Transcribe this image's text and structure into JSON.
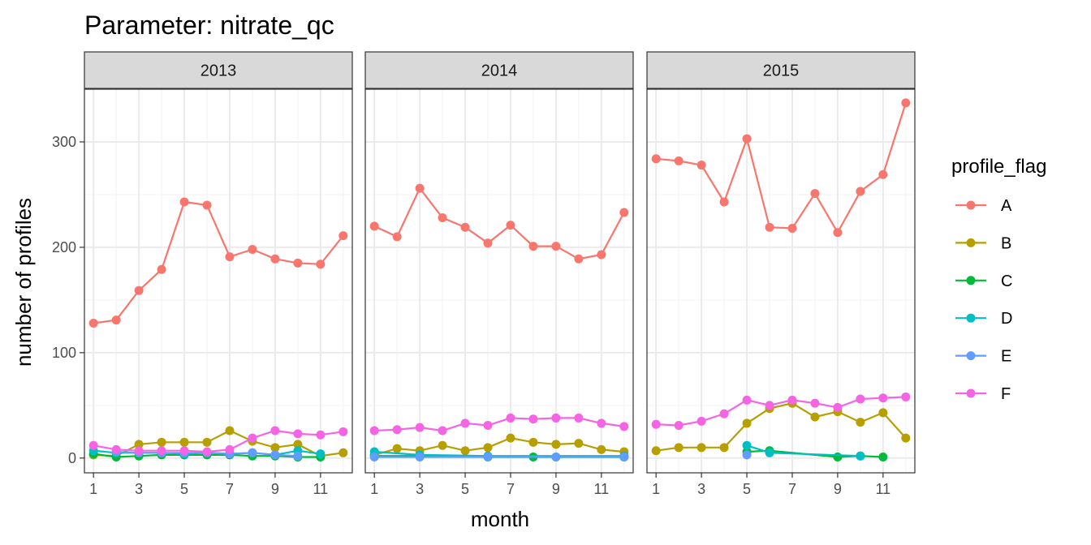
{
  "chart_data": {
    "type": "line",
    "title": "Parameter:  nitrate_qc",
    "xlabel": "month",
    "ylabel": "number of profiles",
    "xlim": [
      0.6,
      12.4
    ],
    "ylim": [
      -14,
      350
    ],
    "x_ticks": [
      1,
      3,
      5,
      7,
      9,
      11
    ],
    "x_tick_labels": [
      "1",
      "3",
      "5",
      "7",
      "9",
      "11"
    ],
    "y_ticks": [
      0,
      100,
      200,
      300
    ],
    "y_tick_labels": [
      "0",
      "100",
      "200",
      "300"
    ],
    "grid": true,
    "legend": {
      "title": "profile_flag",
      "position": "right"
    },
    "series_meta": [
      {
        "name": "A",
        "color": "#F8766D"
      },
      {
        "name": "B",
        "color": "#B79F00"
      },
      {
        "name": "C",
        "color": "#00BA38"
      },
      {
        "name": "D",
        "color": "#00BFC4"
      },
      {
        "name": "E",
        "color": "#619CFF"
      },
      {
        "name": "F",
        "color": "#F564E3"
      }
    ],
    "panels": [
      {
        "label": "2013",
        "series": [
          {
            "name": "A",
            "x": [
              1,
              2,
              3,
              4,
              5,
              6,
              7,
              8,
              9,
              10,
              11,
              12
            ],
            "y": [
              128,
              131,
              159,
              179,
              243,
              240,
              191,
              198,
              189,
              185,
              184,
              211
            ]
          },
          {
            "name": "B",
            "x": [
              1,
              2,
              3,
              4,
              5,
              6,
              7,
              8,
              9,
              10,
              11,
              12
            ],
            "y": [
              3,
              2,
              13,
              15,
              15,
              15,
              26,
              16,
              10,
              13,
              2,
              5
            ]
          },
          {
            "name": "C",
            "x": [
              1,
              2,
              3,
              4,
              5,
              6,
              7,
              8,
              9,
              10,
              11
            ],
            "y": [
              4,
              1,
              2,
              3,
              3,
              3,
              3,
              2,
              2,
              1,
              1
            ]
          },
          {
            "name": "D",
            "x": [
              1,
              2,
              3,
              4,
              5,
              6,
              7,
              8,
              9,
              10,
              11
            ],
            "y": [
              7,
              5,
              5,
              5,
              4,
              5,
              4,
              5,
              3,
              7,
              4
            ]
          },
          {
            "name": "E",
            "x": [
              2,
              3,
              4,
              5,
              6,
              7,
              8,
              9,
              10
            ],
            "y": [
              6,
              5,
              5,
              5,
              5,
              4,
              5,
              3,
              2
            ]
          },
          {
            "name": "F",
            "x": [
              1,
              2,
              3,
              4,
              5,
              6,
              7,
              8,
              9,
              10,
              11,
              12
            ],
            "y": [
              12,
              8,
              7,
              7,
              7,
              6,
              8,
              19,
              26,
              23,
              22,
              25
            ]
          }
        ]
      },
      {
        "label": "2014",
        "series": [
          {
            "name": "A",
            "x": [
              1,
              2,
              3,
              4,
              5,
              6,
              7,
              8,
              9,
              10,
              11,
              12
            ],
            "y": [
              220,
              210,
              256,
              228,
              219,
              204,
              221,
              201,
              201,
              189,
              193,
              233
            ]
          },
          {
            "name": "B",
            "x": [
              1,
              2,
              3,
              4,
              5,
              6,
              7,
              8,
              9,
              10,
              11,
              12
            ],
            "y": [
              3,
              9,
              7,
              12,
              7,
              10,
              19,
              15,
              13,
              14,
              8,
              6
            ]
          },
          {
            "name": "C",
            "x": [
              1,
              3,
              6,
              8,
              9,
              12
            ],
            "y": [
              2,
              2,
              1,
              1,
              1,
              1
            ]
          },
          {
            "name": "D",
            "x": [
              1,
              3,
              6,
              12
            ],
            "y": [
              6,
              3,
              2,
              2
            ]
          },
          {
            "name": "E",
            "x": [
              1,
              3,
              6,
              9,
              12
            ],
            "y": [
              1,
              1,
              1,
              1,
              1
            ]
          },
          {
            "name": "F",
            "x": [
              1,
              2,
              3,
              4,
              5,
              6,
              7,
              8,
              9,
              10,
              11,
              12
            ],
            "y": [
              26,
              27,
              29,
              26,
              33,
              31,
              38,
              37,
              38,
              38,
              33,
              30
            ]
          }
        ]
      },
      {
        "label": "2015",
        "series": [
          {
            "name": "A",
            "x": [
              1,
              2,
              3,
              4,
              5,
              6,
              7,
              8,
              9,
              10,
              11,
              12
            ],
            "y": [
              284,
              282,
              278,
              243,
              303,
              219,
              218,
              251,
              214,
              253,
              269,
              337
            ]
          },
          {
            "name": "B",
            "x": [
              1,
              2,
              3,
              4,
              5,
              6,
              7,
              8,
              9,
              10,
              11,
              12
            ],
            "y": [
              7,
              10,
              10,
              10,
              33,
              47,
              52,
              39,
              44,
              34,
              43,
              19
            ]
          },
          {
            "name": "C",
            "x": [
              5,
              6,
              9,
              10,
              11
            ],
            "y": [
              6,
              7,
              1,
              2,
              1
            ]
          },
          {
            "name": "D",
            "x": [
              5,
              6,
              10
            ],
            "y": [
              12,
              5,
              2
            ]
          },
          {
            "name": "E",
            "x": [
              5
            ],
            "y": [
              3
            ]
          },
          {
            "name": "F",
            "x": [
              1,
              2,
              3,
              4,
              5,
              6,
              7,
              8,
              9,
              10,
              11,
              12
            ],
            "y": [
              32,
              31,
              35,
              42,
              55,
              50,
              55,
              52,
              48,
              56,
              57,
              58
            ]
          }
        ]
      }
    ]
  }
}
